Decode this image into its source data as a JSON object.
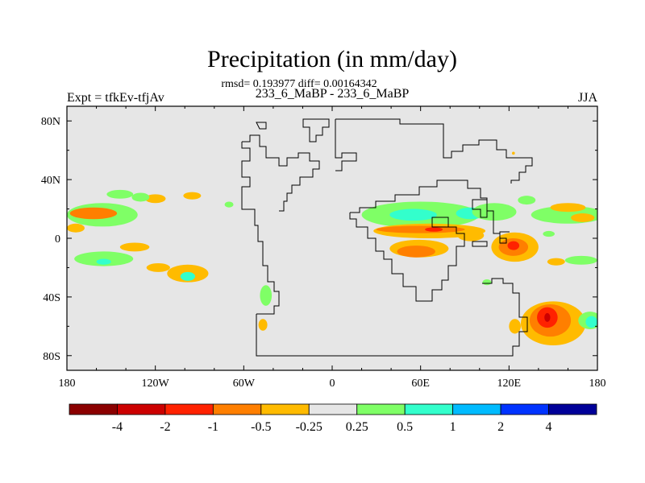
{
  "header": {
    "title": "Precipitation (in mm/day)",
    "stats": "rmsd= 0.193977 diff= 0.00164342",
    "experiment": "Expt = tfkEv-tfjAv",
    "case": "233_6_MaBP - 233_6_MaBP",
    "season": "JJA"
  },
  "chart_data": {
    "type": "heatmap",
    "title": "Precipitation (in mm/day)",
    "subtitle": "233_6_MaBP - 233_6_MaBP",
    "xlabel": "",
    "ylabel": "",
    "xlim": [
      0,
      360
    ],
    "ylim": [
      -90,
      90
    ],
    "x_ticks": [
      {
        "value": 0,
        "label": "180"
      },
      {
        "value": 60,
        "label": "120W"
      },
      {
        "value": 120,
        "label": "60W"
      },
      {
        "value": 180,
        "label": "0"
      },
      {
        "value": 240,
        "label": "60E"
      },
      {
        "value": 300,
        "label": "120E"
      },
      {
        "value": 360,
        "label": "180"
      }
    ],
    "y_ticks": [
      {
        "value": 80,
        "label": "80N"
      },
      {
        "value": 40,
        "label": "40N"
      },
      {
        "value": 0,
        "label": "0"
      },
      {
        "value": -40,
        "label": "40S"
      },
      {
        "value": -80,
        "label": "80S"
      }
    ],
    "background_color": "#e6e6e6",
    "colorbar": {
      "colors": [
        "#8b0000",
        "#cc0000",
        "#ff2200",
        "#ff7f00",
        "#ffbb00",
        "#e6e6e6",
        "#7fff66",
        "#33ffcc",
        "#00bbff",
        "#0033ff",
        "#000099"
      ],
      "tick_labels": [
        "-4",
        "-2",
        "-1",
        "-0.5",
        "-0.25",
        "0.25",
        "0.5",
        "1",
        "2",
        "4"
      ]
    },
    "features": [
      {
        "level": "0.25",
        "color": "#7fff66",
        "lon": 24,
        "lat": 16,
        "rx": 24,
        "ry": 8
      },
      {
        "level": "-0.5",
        "color": "#ff7f00",
        "lon": 18,
        "lat": 17,
        "rx": 16,
        "ry": 4
      },
      {
        "level": "-0.25",
        "color": "#ffbb00",
        "lon": 60,
        "lat": 27,
        "rx": 7,
        "ry": 3
      },
      {
        "level": "-0.25",
        "color": "#ffbb00",
        "lon": 85,
        "lat": 29,
        "rx": 6,
        "ry": 2.5
      },
      {
        "level": "0.25",
        "color": "#7fff66",
        "lon": 110,
        "lat": 23,
        "rx": 3,
        "ry": 2
      },
      {
        "level": "-0.25",
        "color": "#ffbb00",
        "lon": 6,
        "lat": 7,
        "rx": 6,
        "ry": 3
      },
      {
        "level": "0.25",
        "color": "#7fff66",
        "lon": 36,
        "lat": 30,
        "rx": 9,
        "ry": 3
      },
      {
        "level": "0.25",
        "color": "#7fff66",
        "lon": 50,
        "lat": 28,
        "rx": 6,
        "ry": 3
      },
      {
        "level": "-0.25",
        "color": "#ffbb00",
        "lon": 46,
        "lat": -6,
        "rx": 10,
        "ry": 3
      },
      {
        "level": "0.25",
        "color": "#7fff66",
        "lon": 25,
        "lat": -14,
        "rx": 20,
        "ry": 5
      },
      {
        "level": "0.5",
        "color": "#33ffcc",
        "lon": 25,
        "lat": -16,
        "rx": 5,
        "ry": 2
      },
      {
        "level": "-0.25",
        "color": "#ffbb00",
        "lon": 62,
        "lat": -20,
        "rx": 8,
        "ry": 3
      },
      {
        "level": "-0.25",
        "color": "#ffbb00",
        "lon": 82,
        "lat": -24,
        "rx": 14,
        "ry": 6
      },
      {
        "level": "0.5",
        "color": "#33ffcc",
        "lon": 82,
        "lat": -26,
        "rx": 5,
        "ry": 3
      },
      {
        "level": "0.25",
        "color": "#7fff66",
        "lon": 135,
        "lat": -39,
        "rx": 4,
        "ry": 7
      },
      {
        "level": "-0.25",
        "color": "#ffbb00",
        "lon": 133,
        "lat": -59,
        "rx": 3,
        "ry": 4
      },
      {
        "level": "0.25",
        "color": "#7fff66",
        "lon": 240,
        "lat": 16,
        "rx": 40,
        "ry": 9
      },
      {
        "level": "0.5",
        "color": "#33ffcc",
        "lon": 235,
        "lat": 16,
        "rx": 16,
        "ry": 4
      },
      {
        "level": "0.5",
        "color": "#33ffcc",
        "lon": 274,
        "lat": 17,
        "rx": 10,
        "ry": 4
      },
      {
        "level": "0.25",
        "color": "#7fff66",
        "lon": 290,
        "lat": 18,
        "rx": 15,
        "ry": 6
      },
      {
        "level": "-0.25",
        "color": "#ffbb00",
        "lon": 246,
        "lat": 5,
        "rx": 38,
        "ry": 5
      },
      {
        "level": "-0.5",
        "color": "#ff7f00",
        "lon": 240,
        "lat": 6,
        "rx": 30,
        "ry": 2.5
      },
      {
        "level": "-1",
        "color": "#ff2200",
        "lon": 249,
        "lat": 6,
        "rx": 6,
        "ry": 1.5
      },
      {
        "level": "-0.25",
        "color": "#ffbb00",
        "lon": 239,
        "lat": -7,
        "rx": 20,
        "ry": 6
      },
      {
        "level": "-0.5",
        "color": "#ff7f00",
        "lon": 237,
        "lat": -9,
        "rx": 13,
        "ry": 4
      },
      {
        "level": "-0.25",
        "color": "#ffbb00",
        "lon": 274,
        "lat": 2,
        "rx": 9,
        "ry": 4
      },
      {
        "level": "-0.25",
        "color": "#ffbb00",
        "lon": 304,
        "lat": -6,
        "rx": 16,
        "ry": 10
      },
      {
        "level": "-0.5",
        "color": "#ff7f00",
        "lon": 303,
        "lat": -6,
        "rx": 10,
        "ry": 6
      },
      {
        "level": "-1",
        "color": "#ff2200",
        "lon": 303,
        "lat": -5,
        "rx": 4,
        "ry": 3
      },
      {
        "level": "0.25",
        "color": "#7fff66",
        "lon": 312,
        "lat": 26,
        "rx": 6,
        "ry": 3
      },
      {
        "level": "0.25",
        "color": "#7fff66",
        "lon": 340,
        "lat": 16,
        "rx": 25,
        "ry": 6
      },
      {
        "level": "-0.25",
        "color": "#ffbb00",
        "lon": 340,
        "lat": 21,
        "rx": 12,
        "ry": 3
      },
      {
        "level": "-0.25",
        "color": "#ffbb00",
        "lon": 350,
        "lat": 14,
        "rx": 8,
        "ry": 3
      },
      {
        "level": "0.25",
        "color": "#7fff66",
        "lon": 327,
        "lat": 3,
        "rx": 4,
        "ry": 2
      },
      {
        "level": "0.25",
        "color": "#7fff66",
        "lon": 349,
        "lat": -15,
        "rx": 11,
        "ry": 3
      },
      {
        "level": "-0.25",
        "color": "#ffbb00",
        "lon": 332,
        "lat": -16,
        "rx": 6,
        "ry": 2.5
      },
      {
        "level": "0.25",
        "color": "#7fff66",
        "lon": 285,
        "lat": -30,
        "rx": 3,
        "ry": 2
      },
      {
        "level": "-0.25",
        "color": "#ffbb00",
        "lon": 330,
        "lat": -58,
        "rx": 22,
        "ry": 15
      },
      {
        "level": "-0.5",
        "color": "#ff7f00",
        "lon": 328,
        "lat": -56,
        "rx": 14,
        "ry": 11
      },
      {
        "level": "-1",
        "color": "#ff2200",
        "lon": 326,
        "lat": -54,
        "rx": 7,
        "ry": 7
      },
      {
        "level": "-2",
        "color": "#cc0000",
        "lon": 326,
        "lat": -54,
        "rx": 2,
        "ry": 3
      },
      {
        "level": "0.25",
        "color": "#7fff66",
        "lon": 355,
        "lat": -56,
        "rx": 8,
        "ry": 6
      },
      {
        "level": "0.5",
        "color": "#33ffcc",
        "lon": 356,
        "lat": -57,
        "rx": 4,
        "ry": 4
      },
      {
        "level": "-0.25",
        "color": "#ffbb00",
        "lon": 304,
        "lat": -60,
        "rx": 4,
        "ry": 5
      },
      {
        "level": "-0.25",
        "color": "#ffbb00",
        "lon": 303,
        "lat": 58,
        "rx": 1,
        "ry": 1
      }
    ]
  }
}
